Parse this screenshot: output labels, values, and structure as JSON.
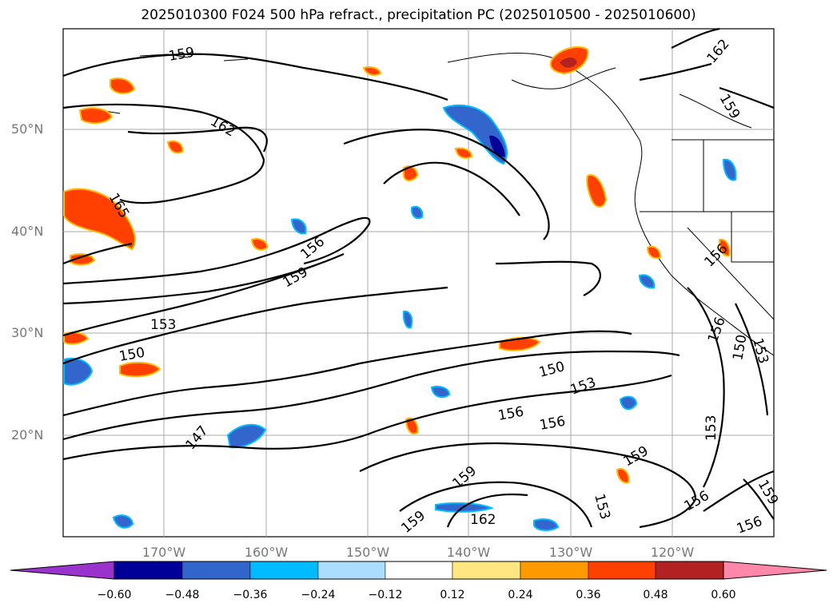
{
  "title": "2025010300 F024 500 hPa refract., precipitation PC (2025010500 - 2025010600)",
  "lat_labels": [
    "50°N",
    "40°N",
    "30°N",
    "20°N"
  ],
  "lon_labels": [
    "170°W",
    "160°W",
    "150°W",
    "140°W",
    "130°W",
    "120°W"
  ],
  "contour_labels": [
    "159",
    "162",
    "165",
    "156",
    "159",
    "153",
    "150",
    "147",
    "150",
    "153",
    "156",
    "156",
    "159",
    "159",
    "159",
    "162",
    "153",
    "162",
    "159",
    "156",
    "156",
    "150",
    "153",
    "153",
    "156",
    "156",
    "159"
  ],
  "colorbar": {
    "ticks": [
      "−0.60",
      "−0.48",
      "−0.36",
      "−0.24",
      "−0.12",
      "0.12",
      "0.24",
      "0.36",
      "0.48",
      "0.60"
    ],
    "colors": [
      "#9933cc",
      "#000099",
      "#3366cc",
      "#00bbff",
      "#aaddff",
      "#ffffff",
      "#ffe680",
      "#ff9900",
      "#ff4000",
      "#b22222",
      "#ff88aa"
    ]
  }
}
